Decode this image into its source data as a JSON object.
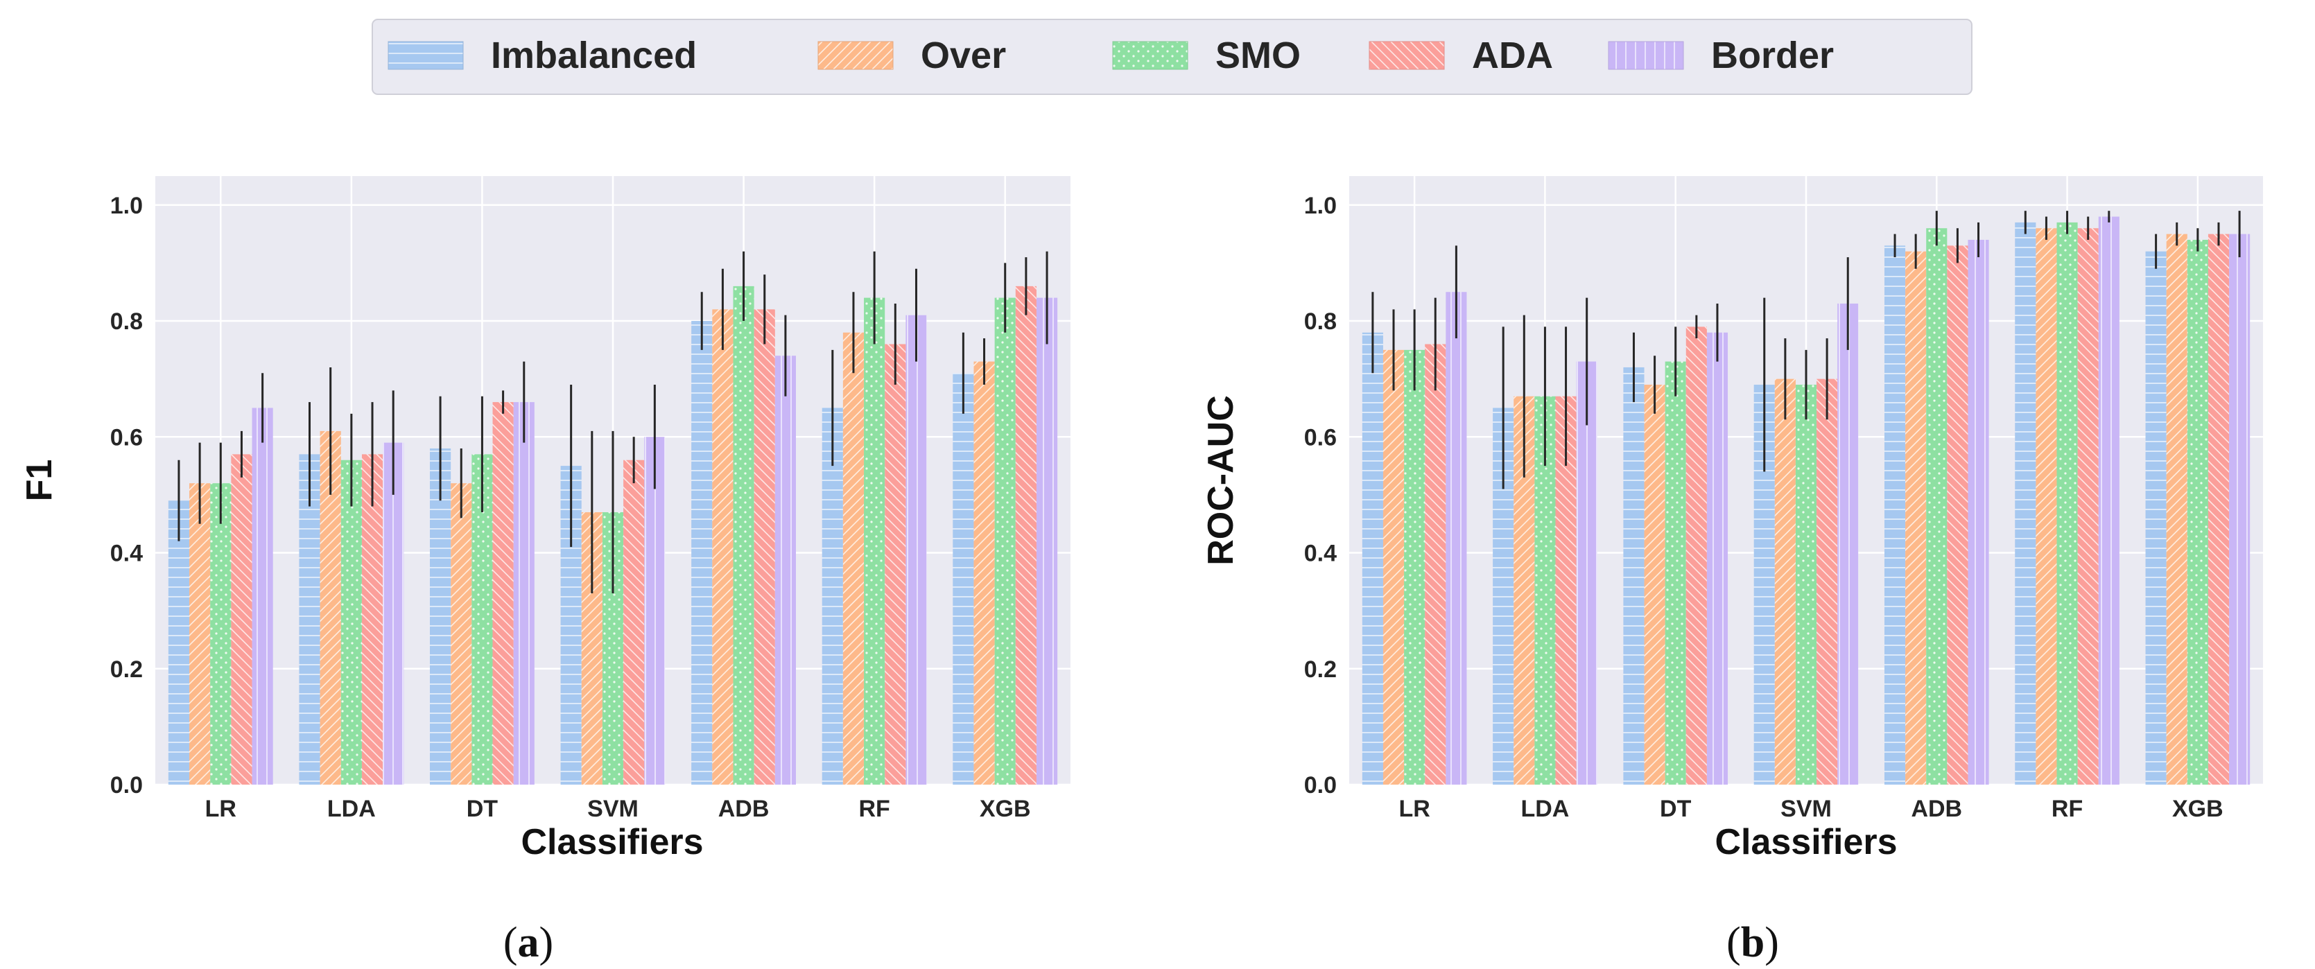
{
  "legend": {
    "entries": [
      {
        "name": "Imbalanced",
        "color": "#a6c8f0",
        "pattern": "hlines"
      },
      {
        "name": "Over",
        "color": "#fdb98a",
        "pattern": "slash"
      },
      {
        "name": "SMO",
        "color": "#8ee0a2",
        "pattern": "dots"
      },
      {
        "name": "ADA",
        "color": "#fb9f9a",
        "pattern": "backslash"
      },
      {
        "name": "Border",
        "color": "#c9b6f6",
        "pattern": "vlines"
      }
    ]
  },
  "chart_data": [
    {
      "type": "bar",
      "panel_label": {
        "open": "(",
        "letter": "a",
        "close": ")"
      },
      "xlabel": "Classifiers",
      "ylabel": "F1",
      "ylim": [
        0,
        1.05
      ],
      "yticks": [
        "0.0",
        "0.2",
        "0.4",
        "0.6",
        "0.8",
        "1.0"
      ],
      "categories": [
        "LR",
        "LDA",
        "DT",
        "SVM",
        "ADB",
        "RF",
        "XGB"
      ],
      "series": [
        {
          "name": "Imbalanced",
          "values": [
            0.49,
            0.57,
            0.58,
            0.55,
            0.8,
            0.65,
            0.71
          ],
          "errors": [
            0.07,
            0.09,
            0.09,
            0.14,
            0.05,
            0.1,
            0.07
          ]
        },
        {
          "name": "Over",
          "values": [
            0.52,
            0.61,
            0.52,
            0.47,
            0.82,
            0.78,
            0.73
          ],
          "errors": [
            0.07,
            0.11,
            0.06,
            0.14,
            0.07,
            0.07,
            0.04
          ]
        },
        {
          "name": "SMO",
          "values": [
            0.52,
            0.56,
            0.57,
            0.47,
            0.86,
            0.84,
            0.84
          ],
          "errors": [
            0.07,
            0.08,
            0.1,
            0.14,
            0.06,
            0.08,
            0.06
          ]
        },
        {
          "name": "ADA",
          "values": [
            0.57,
            0.57,
            0.66,
            0.56,
            0.82,
            0.76,
            0.86
          ],
          "errors": [
            0.04,
            0.09,
            0.02,
            0.04,
            0.06,
            0.07,
            0.05
          ]
        },
        {
          "name": "Border",
          "values": [
            0.65,
            0.59,
            0.66,
            0.6,
            0.74,
            0.81,
            0.84
          ],
          "errors": [
            0.06,
            0.09,
            0.07,
            0.09,
            0.07,
            0.08,
            0.08
          ]
        }
      ]
    },
    {
      "type": "bar",
      "panel_label": {
        "open": "(",
        "letter": "b",
        "close": ")"
      },
      "xlabel": "Classifiers",
      "ylabel": "ROC-AUC",
      "ylim": [
        0,
        1.05
      ],
      "yticks": [
        "0.0",
        "0.2",
        "0.4",
        "0.6",
        "0.8",
        "1.0"
      ],
      "categories": [
        "LR",
        "LDA",
        "DT",
        "SVM",
        "ADB",
        "RF",
        "XGB"
      ],
      "series": [
        {
          "name": "Imbalanced",
          "values": [
            0.78,
            0.65,
            0.72,
            0.69,
            0.93,
            0.97,
            0.92
          ],
          "errors": [
            0.07,
            0.14,
            0.06,
            0.15,
            0.02,
            0.02,
            0.03
          ]
        },
        {
          "name": "Over",
          "values": [
            0.75,
            0.67,
            0.69,
            0.7,
            0.92,
            0.96,
            0.95
          ],
          "errors": [
            0.07,
            0.14,
            0.05,
            0.07,
            0.03,
            0.02,
            0.02
          ]
        },
        {
          "name": "SMO",
          "values": [
            0.75,
            0.67,
            0.73,
            0.69,
            0.96,
            0.97,
            0.94
          ],
          "errors": [
            0.07,
            0.12,
            0.06,
            0.06,
            0.03,
            0.02,
            0.02
          ]
        },
        {
          "name": "ADA",
          "values": [
            0.76,
            0.67,
            0.79,
            0.7,
            0.93,
            0.96,
            0.95
          ],
          "errors": [
            0.08,
            0.12,
            0.02,
            0.07,
            0.03,
            0.02,
            0.02
          ]
        },
        {
          "name": "Border",
          "values": [
            0.85,
            0.73,
            0.78,
            0.83,
            0.94,
            0.98,
            0.95
          ],
          "errors": [
            0.08,
            0.11,
            0.05,
            0.08,
            0.03,
            0.01,
            0.04
          ]
        }
      ]
    }
  ]
}
